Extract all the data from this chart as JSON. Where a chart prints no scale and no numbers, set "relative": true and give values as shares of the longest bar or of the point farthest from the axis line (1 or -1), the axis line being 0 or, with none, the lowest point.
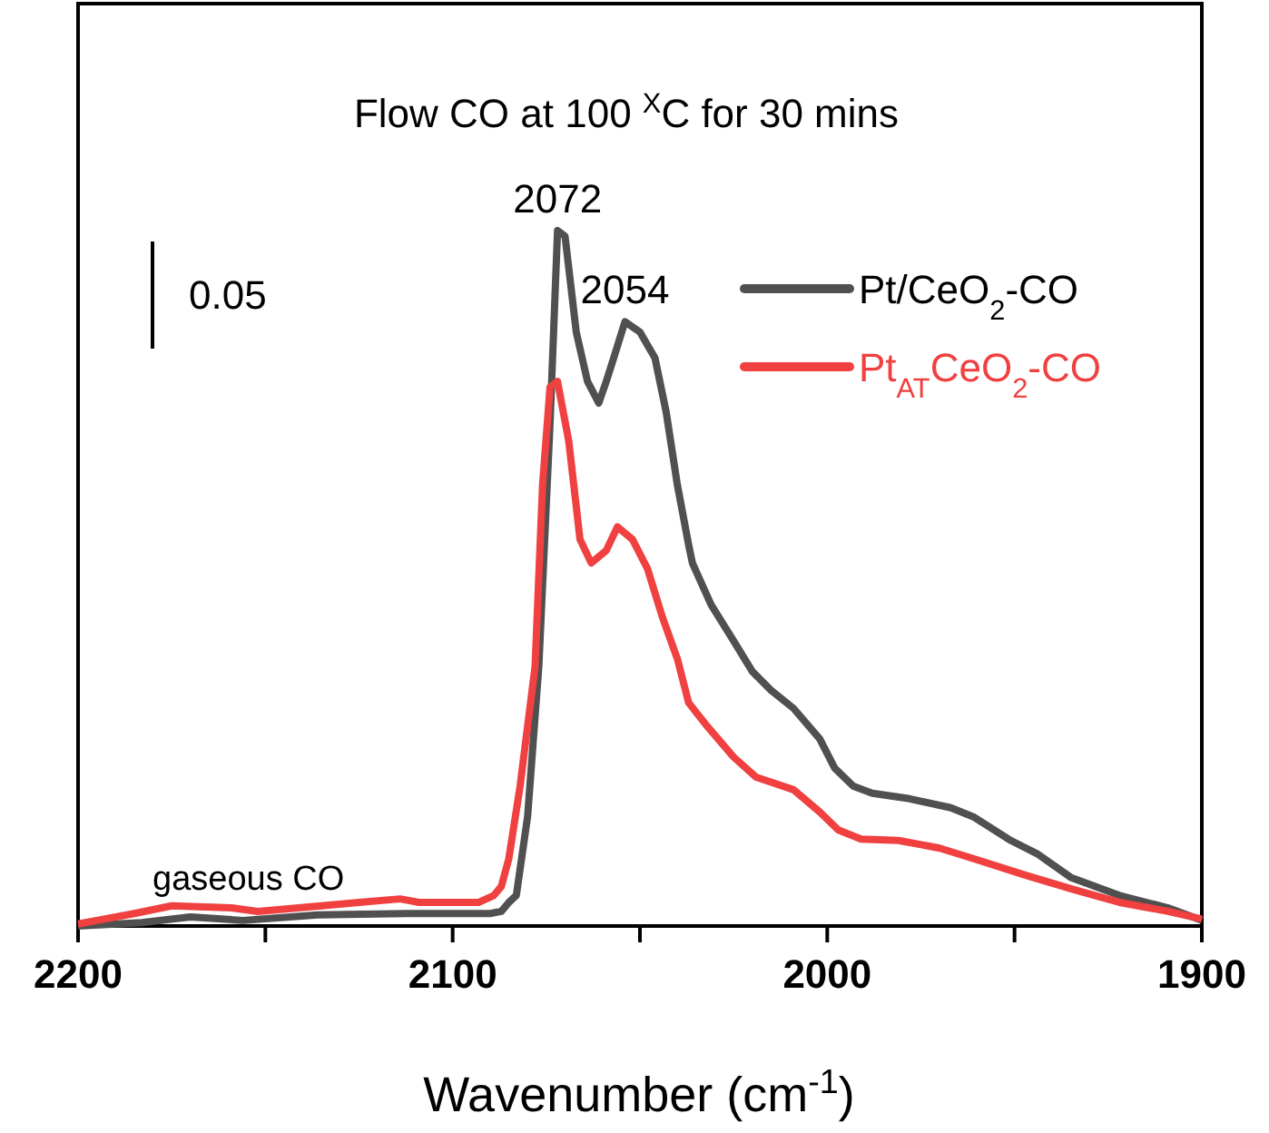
{
  "chart_data": {
    "type": "line",
    "title": "Flow CO at 100 $^{X}$C for 30 mins",
    "xlabel": "Wavenumber (cm$^{-1}$)",
    "relative": true,
    "xlim": [
      2200,
      1900
    ],
    "xticks": [
      2200,
      {
        "value": 2150,
        "label": null
      },
      2100,
      {
        "value": 2050,
        "label": null
      },
      2000,
      {
        "value": 1950,
        "label": null
      },
      1900
    ],
    "legend": "top right",
    "grid": false,
    "line_style": "solid",
    "marker": "none",
    "annotations": [
      {
        "text": "2072",
        "x": 2072,
        "y": 1
      },
      {
        "text": "2054",
        "x": 2054,
        "y": 0.869
      },
      "gaseous CO",
      "0.05"
    ],
    "series": [
      {
        "name": "Pt/CeO$_{2}$-CO",
        "color": "#505050",
        "x": [
          2200,
          2183,
          2170,
          2156,
          2136,
          2112,
          2090,
          2087,
          2085,
          2083,
          2080,
          2077,
          2074,
          2072,
          2070,
          2067,
          2064,
          2061,
          2059,
          2057,
          2054,
          2050,
          2046,
          2043,
          2040,
          2037,
          2036,
          2031,
          2025,
          2020,
          2015,
          2009,
          2002,
          1998,
          1993,
          1988,
          1978,
          1967,
          1961,
          1951,
          1944,
          1935,
          1922,
          1909,
          1900
        ],
        "values": [
          0,
          0.005,
          0.013,
          0.008,
          0.016,
          0.018,
          0.018,
          0.021,
          0.034,
          0.044,
          0.157,
          0.373,
          0.723,
          1,
          0.992,
          0.854,
          0.783,
          0.752,
          0.783,
          0.817,
          0.869,
          0.854,
          0.817,
          0.739,
          0.634,
          0.548,
          0.522,
          0.462,
          0.41,
          0.366,
          0.339,
          0.313,
          0.269,
          0.227,
          0.201,
          0.191,
          0.183,
          0.17,
          0.157,
          0.123,
          0.104,
          0.07,
          0.044,
          0.026,
          0.008
        ]
      },
      {
        "name": "Pt$_{AT}$CeO$_{2}$-CO",
        "color": "#f04040",
        "x": [
          2200,
          2195,
          2185,
          2175,
          2159,
          2152,
          2135,
          2125,
          2114,
          2109,
          2093,
          2089,
          2087,
          2085,
          2082,
          2078,
          2076,
          2074,
          2072,
          2069,
          2066,
          2063,
          2059,
          2056,
          2052,
          2048,
          2044,
          2040,
          2037,
          2032,
          2025,
          2019,
          2009,
          2002,
          1997,
          1991,
          1981,
          1970,
          1961,
          1947,
          1934,
          1922,
          1909,
          1900
        ],
        "values": [
          0.003,
          0.008,
          0.018,
          0.029,
          0.026,
          0.021,
          0.029,
          0.034,
          0.039,
          0.034,
          0.034,
          0.044,
          0.057,
          0.097,
          0.201,
          0.373,
          0.634,
          0.775,
          0.783,
          0.697,
          0.556,
          0.522,
          0.54,
          0.574,
          0.556,
          0.514,
          0.444,
          0.384,
          0.321,
          0.287,
          0.243,
          0.214,
          0.196,
          0.164,
          0.138,
          0.125,
          0.123,
          0.112,
          0.097,
          0.073,
          0.052,
          0.034,
          0.021,
          0.01
        ]
      }
    ]
  }
}
